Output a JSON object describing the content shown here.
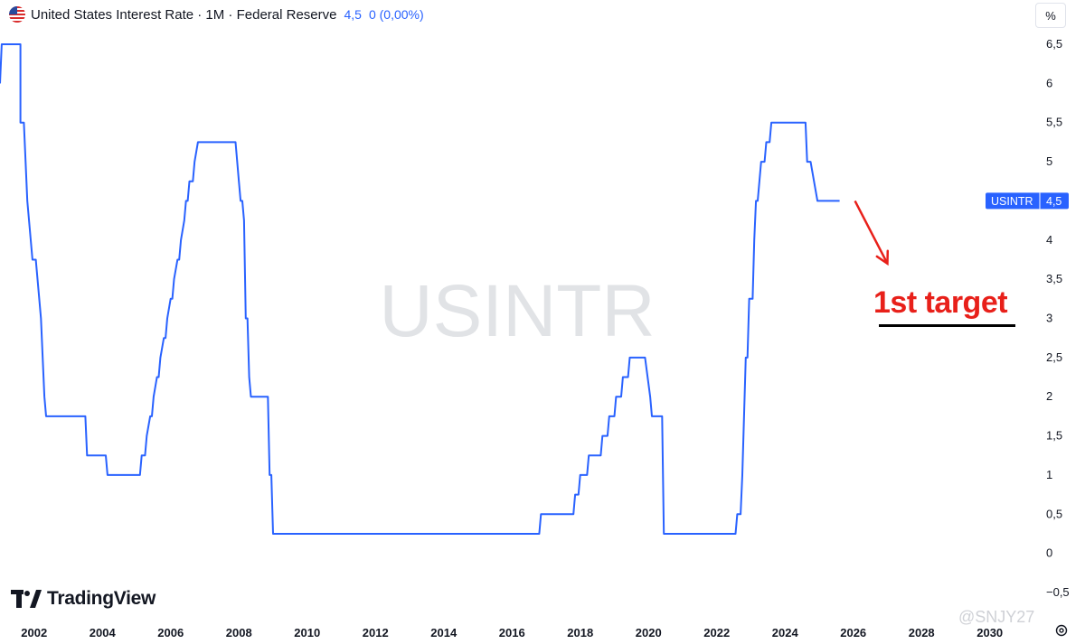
{
  "header": {
    "title": "United States Interest Rate · 1M · Federal Reserve",
    "last_value": "4,5",
    "change": "0 (0,00%)",
    "flag_icon": "us-flag-icon"
  },
  "unit_button": "%",
  "brand": {
    "name": "TradingView",
    "logo_icon": "tradingview-logo-icon"
  },
  "credit": "@SNJY27",
  "colors": {
    "line": "#2962ff",
    "annotation": "#e8201a",
    "watermark": "#e1e3e6",
    "axis_text": "#131722"
  },
  "chart_data": {
    "type": "line",
    "symbol": "USINTR",
    "watermark": "USINTR",
    "last_label": {
      "symbol": "USINTR",
      "value": "4,5"
    },
    "xlim": [
      2001.0,
      2031.2
    ],
    "ylim": [
      -0.5,
      6.5
    ],
    "x_ticks": [
      2002,
      2004,
      2006,
      2008,
      2010,
      2012,
      2014,
      2016,
      2018,
      2020,
      2022,
      2024,
      2026,
      2028,
      2030
    ],
    "y_ticks": [
      {
        "v": 6.5,
        "label": "6,5"
      },
      {
        "v": 6,
        "label": "6"
      },
      {
        "v": 5.5,
        "label": "5,5"
      },
      {
        "v": 5,
        "label": "5"
      },
      {
        "v": 4.5,
        "label": "4,5"
      },
      {
        "v": 4,
        "label": "4"
      },
      {
        "v": 3.5,
        "label": "3,5"
      },
      {
        "v": 3,
        "label": "3"
      },
      {
        "v": 2.5,
        "label": "2,5"
      },
      {
        "v": 2,
        "label": "2"
      },
      {
        "v": 1.5,
        "label": "1,5"
      },
      {
        "v": 1,
        "label": "1"
      },
      {
        "v": 0.5,
        "label": "0,5"
      },
      {
        "v": 0,
        "label": "0"
      },
      {
        "v": -0.5,
        "label": "−0,5"
      }
    ],
    "series": [
      {
        "points": [
          [
            2001.0,
            6.0
          ],
          [
            2001.05,
            6.5
          ],
          [
            2001.6,
            6.5
          ],
          [
            2001.6,
            5.5
          ],
          [
            2001.7,
            5.5
          ],
          [
            2001.75,
            5.0
          ],
          [
            2001.8,
            4.5
          ],
          [
            2001.9,
            4.0
          ],
          [
            2001.95,
            3.75
          ],
          [
            2002.05,
            3.75
          ],
          [
            2002.1,
            3.5
          ],
          [
            2002.2,
            3.0
          ],
          [
            2002.25,
            2.5
          ],
          [
            2002.3,
            2.0
          ],
          [
            2002.35,
            1.75
          ],
          [
            2003.5,
            1.75
          ],
          [
            2003.55,
            1.25
          ],
          [
            2004.1,
            1.25
          ],
          [
            2004.15,
            1.0
          ],
          [
            2005.1,
            1.0
          ],
          [
            2005.15,
            1.25
          ],
          [
            2005.25,
            1.25
          ],
          [
            2005.3,
            1.5
          ],
          [
            2005.4,
            1.75
          ],
          [
            2005.45,
            1.75
          ],
          [
            2005.5,
            2.0
          ],
          [
            2005.6,
            2.25
          ],
          [
            2005.65,
            2.25
          ],
          [
            2005.7,
            2.5
          ],
          [
            2005.8,
            2.75
          ],
          [
            2005.85,
            2.75
          ],
          [
            2005.9,
            3.0
          ],
          [
            2006.0,
            3.25
          ],
          [
            2006.05,
            3.25
          ],
          [
            2006.1,
            3.5
          ],
          [
            2006.2,
            3.75
          ],
          [
            2006.25,
            3.75
          ],
          [
            2006.3,
            4.0
          ],
          [
            2006.4,
            4.25
          ],
          [
            2006.45,
            4.5
          ],
          [
            2006.5,
            4.5
          ],
          [
            2006.55,
            4.75
          ],
          [
            2006.65,
            4.75
          ],
          [
            2006.7,
            5.0
          ],
          [
            2006.8,
            5.25
          ],
          [
            2007.9,
            5.25
          ],
          [
            2008.0,
            4.75
          ],
          [
            2008.05,
            4.5
          ],
          [
            2008.1,
            4.5
          ],
          [
            2008.15,
            4.25
          ],
          [
            2008.2,
            3.0
          ],
          [
            2008.25,
            3.0
          ],
          [
            2008.3,
            2.25
          ],
          [
            2008.35,
            2.0
          ],
          [
            2008.85,
            2.0
          ],
          [
            2008.9,
            1.0
          ],
          [
            2008.95,
            1.0
          ],
          [
            2009.0,
            0.25
          ],
          [
            2016.8,
            0.25
          ],
          [
            2016.85,
            0.5
          ],
          [
            2017.8,
            0.5
          ],
          [
            2017.85,
            0.75
          ],
          [
            2017.95,
            0.75
          ],
          [
            2018.0,
            1.0
          ],
          [
            2018.2,
            1.0
          ],
          [
            2018.25,
            1.25
          ],
          [
            2018.6,
            1.25
          ],
          [
            2018.65,
            1.5
          ],
          [
            2018.8,
            1.5
          ],
          [
            2018.85,
            1.75
          ],
          [
            2019.0,
            1.75
          ],
          [
            2019.05,
            2.0
          ],
          [
            2019.2,
            2.0
          ],
          [
            2019.25,
            2.25
          ],
          [
            2019.4,
            2.25
          ],
          [
            2019.45,
            2.5
          ],
          [
            2019.9,
            2.5
          ],
          [
            2020.05,
            2.0
          ],
          [
            2020.1,
            1.75
          ],
          [
            2020.4,
            1.75
          ],
          [
            2020.45,
            0.25
          ],
          [
            2022.55,
            0.25
          ],
          [
            2022.6,
            0.5
          ],
          [
            2022.7,
            0.5
          ],
          [
            2022.75,
            1.0
          ],
          [
            2022.85,
            2.5
          ],
          [
            2022.9,
            2.5
          ],
          [
            2022.95,
            3.25
          ],
          [
            2023.05,
            3.25
          ],
          [
            2023.1,
            4.0
          ],
          [
            2023.15,
            4.5
          ],
          [
            2023.2,
            4.5
          ],
          [
            2023.3,
            5.0
          ],
          [
            2023.4,
            5.0
          ],
          [
            2023.45,
            5.25
          ],
          [
            2023.55,
            5.25
          ],
          [
            2023.6,
            5.5
          ],
          [
            2024.6,
            5.5
          ],
          [
            2024.65,
            5.0
          ],
          [
            2024.75,
            5.0
          ],
          [
            2024.85,
            4.75
          ],
          [
            2024.95,
            4.5
          ],
          [
            2025.6,
            4.5
          ]
        ]
      }
    ],
    "annotations": {
      "target_text": "1st target",
      "arrow_from": [
        2026.05,
        4.5
      ],
      "arrow_to": [
        2027.0,
        3.7
      ],
      "underline_y": 3.0,
      "underline_x": [
        2026.75,
        2030.75
      ]
    }
  }
}
